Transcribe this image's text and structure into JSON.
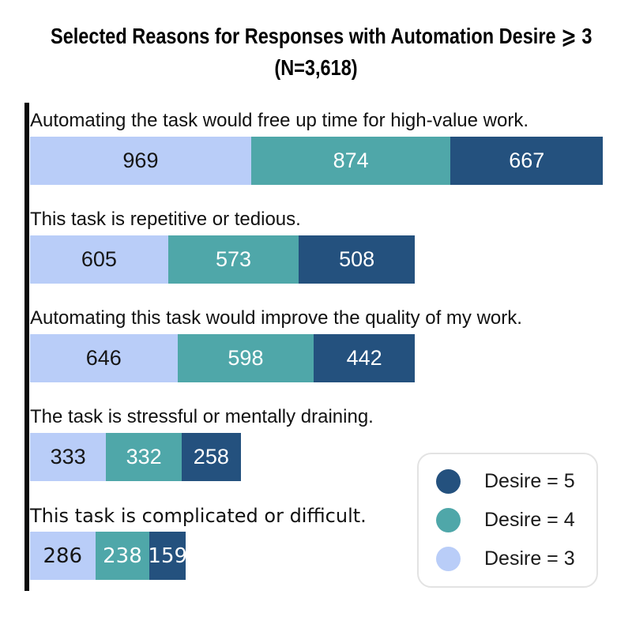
{
  "title": {
    "line1": "Selected Reasons for Responses with Automation Desire ⩾ 3",
    "line2": "(N=3,618)"
  },
  "legend": {
    "items": [
      {
        "label": "Desire = 5",
        "color": "#24517e"
      },
      {
        "label": "Desire = 4",
        "color": "#4fa7a9"
      },
      {
        "label": "Desire = 3",
        "color": "#b9cdf8"
      }
    ]
  },
  "colors": {
    "desire5_dark_blue": "#24517e",
    "desire4_teal": "#4fa7a9",
    "desire3_light_blue": "#b9cdf8",
    "axis_spine": "#0a0a0a",
    "value_text_on_light": "#161616",
    "value_text_on_dark": "#ffffff",
    "legend_border": "#e3e3e3",
    "background": "#ffffff"
  },
  "chart_data": {
    "type": "bar",
    "orientation": "horizontal",
    "stacked": true,
    "title": "Selected Reasons for Responses with Automation Desire ⩾ 3 (N=3,618)",
    "categories": [
      "Automating the task would free up time for high-value work.",
      "This task is repetitive or tedious.",
      "Automating this task would improve the quality of my work.",
      "The task is stressful or mentally draining.",
      "This task is complicated or difficult."
    ],
    "series": [
      {
        "name": "Desire = 3",
        "color": "#b9cdf8",
        "text_color": "#161616",
        "values": [
          969,
          605,
          646,
          333,
          286
        ]
      },
      {
        "name": "Desire = 4",
        "color": "#4fa7a9",
        "text_color": "#ffffff",
        "values": [
          874,
          573,
          598,
          332,
          238
        ]
      },
      {
        "name": "Desire = 5",
        "color": "#24517e",
        "text_color": "#ffffff",
        "values": [
          667,
          508,
          442,
          258,
          159
        ]
      }
    ],
    "totals": [
      2510,
      1686,
      1686,
      923,
      683
    ],
    "xlim": [
      0,
      2510
    ],
    "grid": false,
    "legend_position": "lower right",
    "legend_order": [
      "Desire = 5",
      "Desire = 4",
      "Desire = 3"
    ]
  }
}
